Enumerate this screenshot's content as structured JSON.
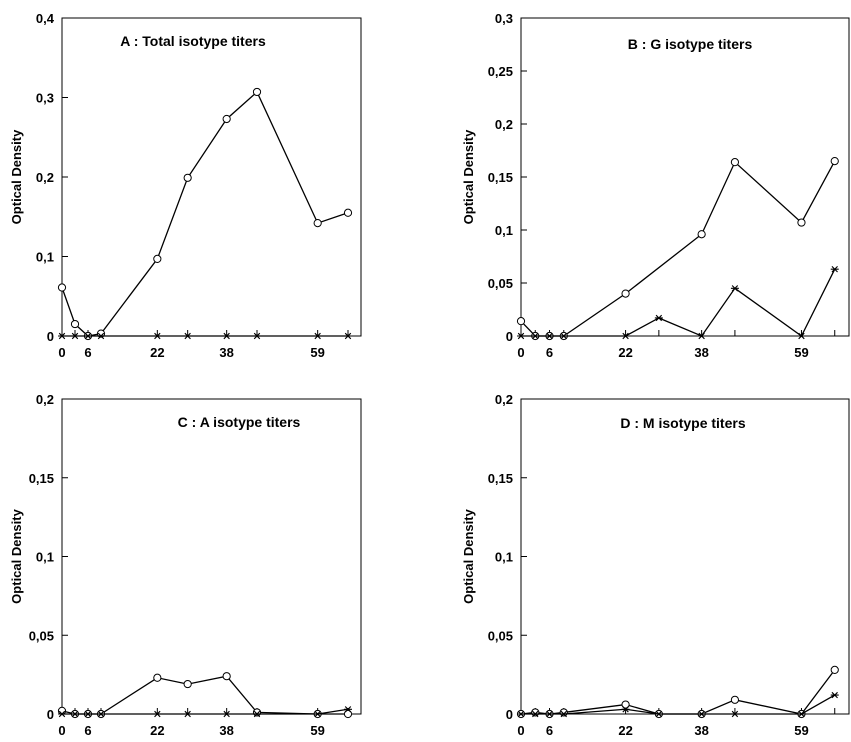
{
  "chart_data": [
    {
      "type": "line",
      "title": "A : Total isotype titers",
      "ylabel": "Optical Density",
      "xlabel": "",
      "x": [
        0,
        3,
        6,
        9,
        22,
        29,
        38,
        45,
        59,
        66
      ],
      "xticks": [
        0,
        6,
        22,
        38,
        59
      ],
      "ylim": [
        0,
        0.4
      ],
      "yticks": [
        "0",
        "0,1",
        "0,2",
        "0,3",
        "0,4"
      ],
      "yticks_values": [
        0,
        0.1,
        0.2,
        0.3,
        0.4
      ],
      "series": [
        {
          "marker": "circle",
          "values": [
            0.061,
            0.015,
            0.0,
            0.003,
            0.097,
            0.199,
            0.273,
            0.307,
            0.142,
            0.155
          ]
        },
        {
          "marker": "star",
          "values": [
            0,
            0,
            0,
            0,
            0,
            0,
            0,
            0,
            0,
            0
          ]
        }
      ]
    },
    {
      "type": "line",
      "title": "B : G isotype titers",
      "ylabel": "Optical Density",
      "xlabel": "",
      "x": [
        0,
        3,
        6,
        9,
        22,
        29,
        38,
        45,
        59,
        66
      ],
      "xticks": [
        0,
        6,
        22,
        38,
        59
      ],
      "ylim": [
        0,
        0.3
      ],
      "yticks": [
        "0",
        "0,05",
        "0,1",
        "0,15",
        "0,2",
        "0,25",
        "0,3"
      ],
      "yticks_values": [
        0,
        0.05,
        0.1,
        0.15,
        0.2,
        0.25,
        0.3
      ],
      "series": [
        {
          "marker": "circle",
          "values": [
            0.014,
            0.0,
            0.0,
            0.0,
            0.04,
            null,
            0.096,
            0.164,
            0.107,
            0.165
          ]
        },
        {
          "marker": "star",
          "values": [
            0,
            0,
            0,
            0,
            0,
            0.017,
            0,
            0.045,
            0,
            0.063
          ]
        }
      ]
    },
    {
      "type": "line",
      "title": "C : A isotype titers",
      "ylabel": "Optical Density",
      "xlabel": "",
      "x": [
        0,
        3,
        6,
        9,
        22,
        29,
        38,
        45,
        59,
        66
      ],
      "xticks": [
        0,
        6,
        22,
        38,
        59
      ],
      "ylim": [
        0,
        0.2
      ],
      "yticks": [
        "0",
        "0,05",
        "0,1",
        "0,15",
        "0,2"
      ],
      "yticks_values": [
        0,
        0.05,
        0.1,
        0.15,
        0.2
      ],
      "series": [
        {
          "marker": "circle",
          "values": [
            0.002,
            0.0,
            0.0,
            0.0,
            0.023,
            0.019,
            0.024,
            0.001,
            0.0,
            0.0
          ]
        },
        {
          "marker": "star",
          "values": [
            0,
            0,
            0,
            0,
            0,
            0,
            0,
            0,
            0,
            0.003
          ]
        }
      ]
    },
    {
      "type": "line",
      "title": "D : M isotype titers",
      "ylabel": "Optical Density",
      "xlabel": "",
      "x": [
        0,
        3,
        6,
        9,
        22,
        29,
        38,
        45,
        59,
        66
      ],
      "xticks": [
        0,
        6,
        22,
        38,
        59
      ],
      "ylim": [
        0,
        0.2
      ],
      "yticks": [
        "0",
        "0,05",
        "0,1",
        "0,15",
        "0,2"
      ],
      "yticks_values": [
        0,
        0.05,
        0.1,
        0.15,
        0.2
      ],
      "series": [
        {
          "marker": "circle",
          "values": [
            0.0,
            0.001,
            0.0,
            0.001,
            0.006,
            0.0,
            0.0,
            0.009,
            0.0,
            0.028
          ]
        },
        {
          "marker": "star",
          "values": [
            0,
            0,
            0,
            0,
            0.003,
            0,
            0,
            0,
            0,
            0.012
          ]
        }
      ]
    }
  ]
}
